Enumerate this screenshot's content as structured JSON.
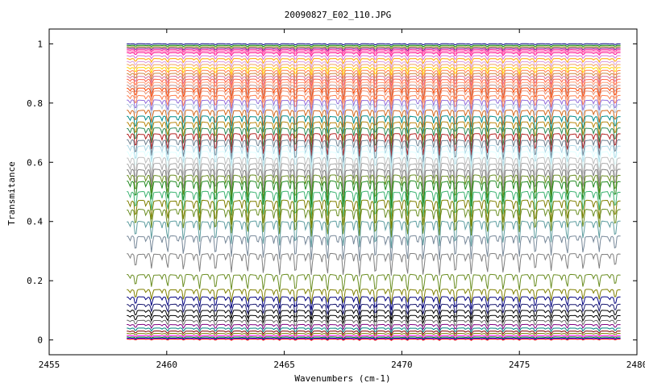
{
  "chart_data": {
    "type": "line",
    "title": "20090827_E02_110.JPG",
    "xlabel": "Wavenumbers (cm-1)",
    "ylabel": "Transmitance",
    "xlim": [
      2455,
      2480
    ],
    "ylim": [
      -0.05,
      1.05
    ],
    "x_ticks": [
      {
        "value": 2455,
        "label": "2455"
      },
      {
        "value": 2460,
        "label": "2460"
      },
      {
        "value": 2465,
        "label": "2465"
      },
      {
        "value": 2470,
        "label": "2470"
      },
      {
        "value": 2475,
        "label": "2475"
      },
      {
        "value": 2480,
        "label": "2480"
      }
    ],
    "y_ticks": [
      {
        "value": 0,
        "label": "0"
      },
      {
        "value": 0.2,
        "label": "0.2"
      },
      {
        "value": 0.4,
        "label": "0.4"
      },
      {
        "value": 0.6,
        "label": "0.6"
      },
      {
        "value": 0.8,
        "label": "0.8"
      },
      {
        "value": 1,
        "label": "1"
      }
    ],
    "x_range": [
      2458.3,
      2479.3
    ],
    "grid": false,
    "legend": "none",
    "line_spacing_cm1": 0.68,
    "series": [
      {
        "baseline": 1.0,
        "color": "#000080"
      },
      {
        "baseline": 0.995,
        "color": "#008000"
      },
      {
        "baseline": 0.99,
        "color": "#808000"
      },
      {
        "baseline": 0.985,
        "color": "#800080"
      },
      {
        "baseline": 0.98,
        "color": "#ff1493"
      },
      {
        "baseline": 0.975,
        "color": "#ff69b4"
      },
      {
        "baseline": 0.97,
        "color": "#ff1493"
      },
      {
        "baseline": 0.96,
        "color": "#da70d6"
      },
      {
        "baseline": 0.95,
        "color": "#ffa500"
      },
      {
        "baseline": 0.94,
        "color": "#dda0dd"
      },
      {
        "baseline": 0.93,
        "color": "#f4a460"
      },
      {
        "baseline": 0.92,
        "color": "#ffd700"
      },
      {
        "baseline": 0.91,
        "color": "#ff7f50"
      },
      {
        "baseline": 0.9,
        "color": "#cd853f"
      },
      {
        "baseline": 0.89,
        "color": "#db7093"
      },
      {
        "baseline": 0.88,
        "color": "#ff6347"
      },
      {
        "baseline": 0.87,
        "color": "#ffa07a"
      },
      {
        "baseline": 0.86,
        "color": "#bc8f8f"
      },
      {
        "baseline": 0.85,
        "color": "#ff4500"
      },
      {
        "baseline": 0.84,
        "color": "#e9967a"
      },
      {
        "baseline": 0.825,
        "color": "#ff7f50"
      },
      {
        "baseline": 0.81,
        "color": "#9370db"
      },
      {
        "baseline": 0.795,
        "color": "#b0c4de"
      },
      {
        "baseline": 0.775,
        "color": "#d2691e"
      },
      {
        "baseline": 0.755,
        "color": "#008b8b"
      },
      {
        "baseline": 0.735,
        "color": "#b8860b"
      },
      {
        "baseline": 0.715,
        "color": "#2e8b57"
      },
      {
        "baseline": 0.695,
        "color": "#b22222"
      },
      {
        "baseline": 0.675,
        "color": "#708090"
      },
      {
        "baseline": 0.655,
        "color": "#add8e6"
      },
      {
        "baseline": 0.635,
        "color": "#e0ffff"
      },
      {
        "baseline": 0.615,
        "color": "#c0c0c0"
      },
      {
        "baseline": 0.595,
        "color": "#a9a9a9"
      },
      {
        "baseline": 0.575,
        "color": "#808080"
      },
      {
        "baseline": 0.555,
        "color": "#6b8e23"
      },
      {
        "baseline": 0.535,
        "color": "#228b22"
      },
      {
        "baseline": 0.5,
        "color": "#3cb371"
      },
      {
        "baseline": 0.47,
        "color": "#808000"
      },
      {
        "baseline": 0.44,
        "color": "#6b8e23"
      },
      {
        "baseline": 0.4,
        "color": "#5f9ea0"
      },
      {
        "baseline": 0.35,
        "color": "#778899"
      },
      {
        "baseline": 0.29,
        "color": "#808080"
      },
      {
        "baseline": 0.22,
        "color": "#6b8e23"
      },
      {
        "baseline": 0.17,
        "color": "#808000"
      },
      {
        "baseline": 0.145,
        "color": "#000080"
      },
      {
        "baseline": 0.12,
        "color": "#191970"
      },
      {
        "baseline": 0.1,
        "color": "#000000"
      },
      {
        "baseline": 0.082,
        "color": "#000000"
      },
      {
        "baseline": 0.066,
        "color": "#696969"
      },
      {
        "baseline": 0.052,
        "color": "#800080"
      },
      {
        "baseline": 0.04,
        "color": "#008080"
      },
      {
        "baseline": 0.03,
        "color": "#800000"
      },
      {
        "baseline": 0.022,
        "color": "#808000"
      },
      {
        "baseline": 0.015,
        "color": "#ff00ff"
      },
      {
        "baseline": 0.01,
        "color": "#008000"
      },
      {
        "baseline": 0.006,
        "color": "#0000ff"
      },
      {
        "baseline": 0.003,
        "color": "#ff0000"
      }
    ]
  }
}
